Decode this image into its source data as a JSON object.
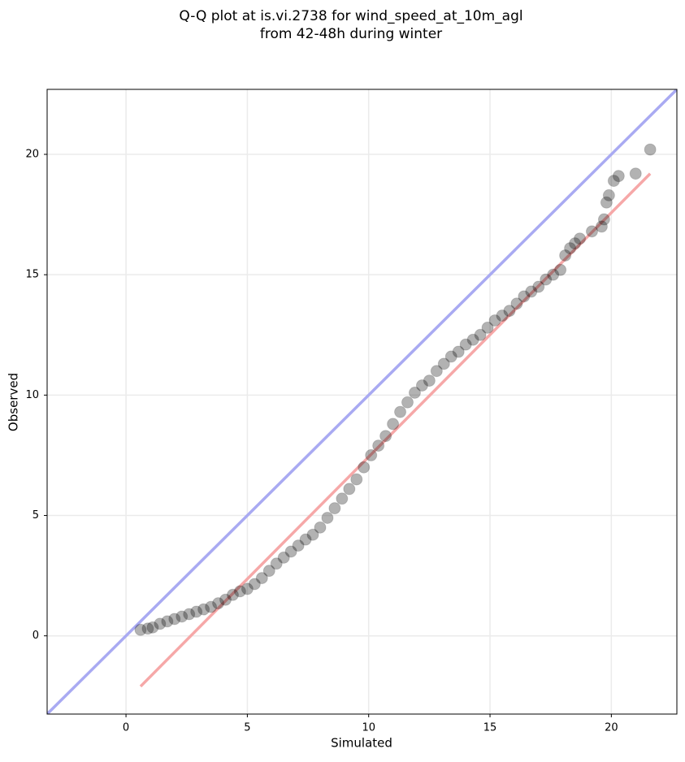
{
  "chart_data": {
    "type": "scatter",
    "title": [
      "Q-Q plot at is.vi.2738 for wind_speed_at_10m_agl",
      "from 42-48h during winter"
    ],
    "xlabel": "Simulated",
    "ylabel": "Observed",
    "xlim": [
      -3.25,
      22.7
    ],
    "ylim": [
      -3.25,
      22.7
    ],
    "xticks": [
      0,
      5,
      10,
      15,
      20
    ],
    "yticks": [
      0,
      5,
      10,
      15,
      20
    ],
    "grid": true,
    "color": "#000000",
    "x": [
      0.6,
      0.9,
      1.1,
      1.4,
      1.7,
      2.0,
      2.3,
      2.6,
      2.9,
      3.2,
      3.5,
      3.8,
      4.1,
      4.4,
      4.7,
      5.0,
      5.3,
      5.6,
      5.9,
      6.2,
      6.5,
      6.8,
      7.1,
      7.4,
      7.7,
      8.0,
      8.3,
      8.6,
      8.9,
      9.2,
      9.5,
      9.8,
      10.1,
      10.4,
      10.7,
      11.0,
      11.3,
      11.6,
      11.9,
      12.2,
      12.5,
      12.8,
      13.1,
      13.4,
      13.7,
      14.0,
      14.3,
      14.6,
      14.9,
      15.2,
      15.5,
      15.8,
      16.1,
      16.4,
      16.7,
      17.0,
      17.3,
      17.6,
      17.9,
      18.1,
      18.3,
      18.5,
      18.7,
      19.2,
      19.6,
      19.7,
      19.8,
      19.9,
      20.1,
      20.3,
      21.0,
      21.6
    ],
    "values": [
      0.25,
      0.3,
      0.35,
      0.5,
      0.6,
      0.7,
      0.8,
      0.9,
      1.0,
      1.1,
      1.2,
      1.35,
      1.5,
      1.7,
      1.85,
      1.95,
      2.15,
      2.4,
      2.7,
      3.0,
      3.25,
      3.5,
      3.75,
      4.0,
      4.2,
      4.5,
      4.9,
      5.3,
      5.7,
      6.1,
      6.5,
      7.0,
      7.5,
      7.9,
      8.3,
      8.8,
      9.3,
      9.7,
      10.1,
      10.4,
      10.6,
      11.0,
      11.3,
      11.6,
      11.8,
      12.1,
      12.3,
      12.5,
      12.8,
      13.1,
      13.3,
      13.5,
      13.8,
      14.1,
      14.3,
      14.5,
      14.8,
      15.0,
      15.2,
      15.8,
      16.1,
      16.3,
      16.5,
      16.8,
      17.0,
      17.3,
      18.0,
      18.3,
      18.9,
      19.1,
      19.2,
      20.2
    ],
    "lines": [
      {
        "color": "#a9aaf2",
        "x": [
          -3.25,
          22.7
        ],
        "y": [
          -3.25,
          22.7
        ]
      },
      {
        "color": "#f6a8a8",
        "x": [
          0.6,
          21.6
        ],
        "y": [
          -2.1,
          19.2
        ]
      }
    ]
  }
}
